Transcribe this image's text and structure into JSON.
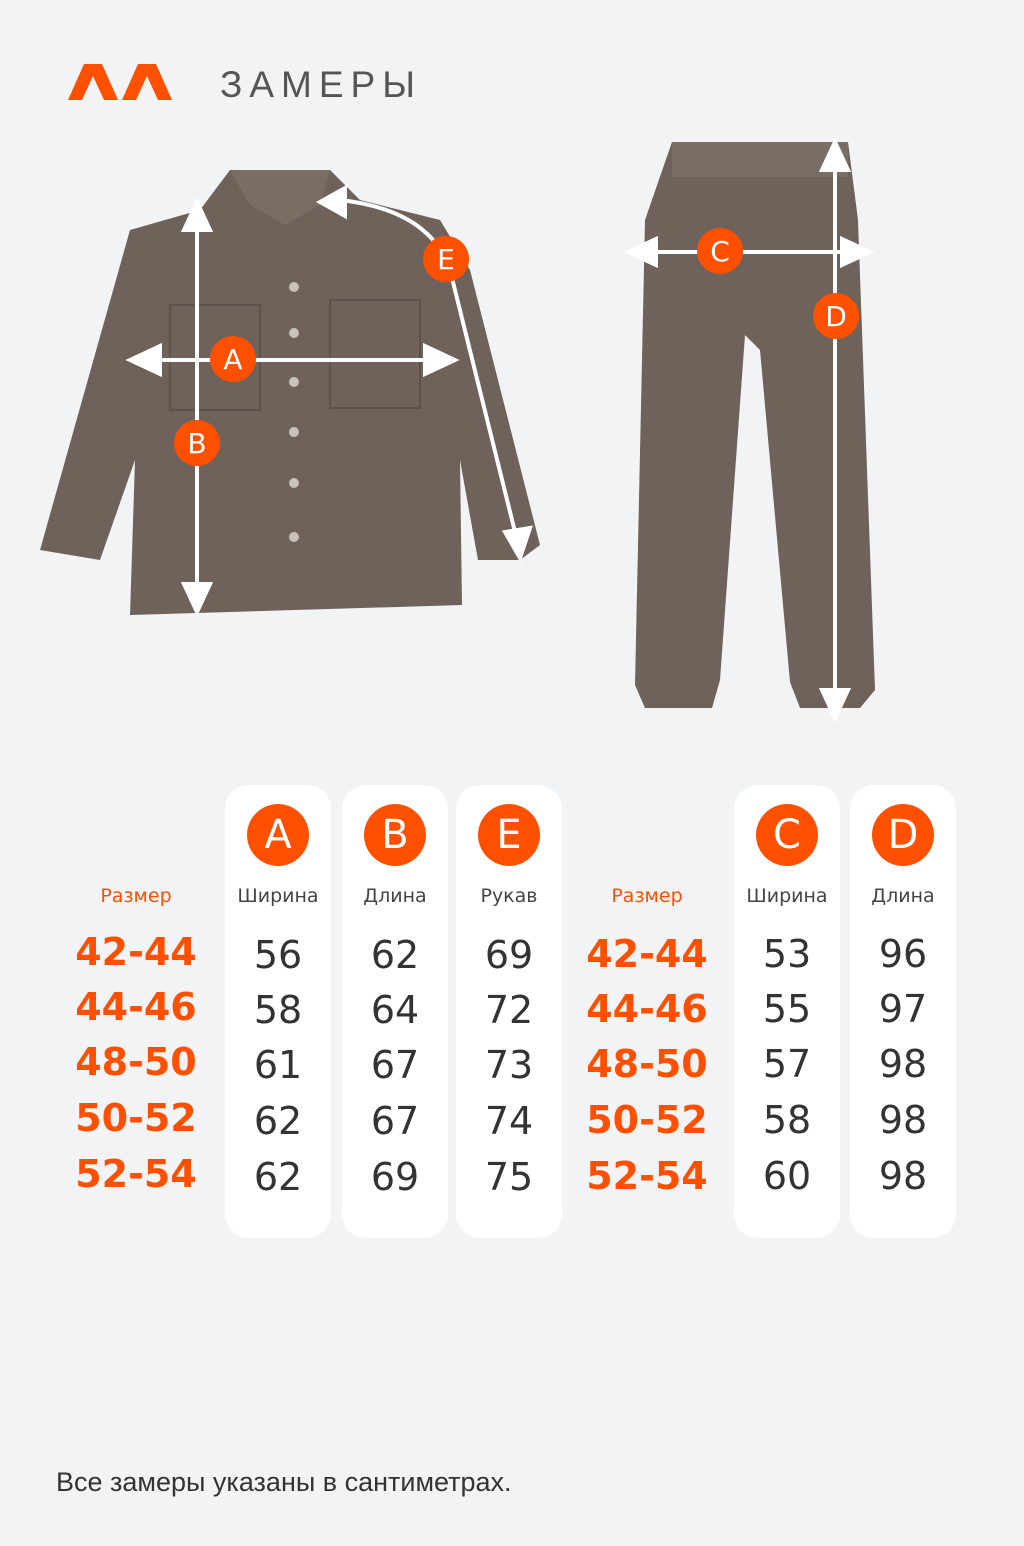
{
  "header": {
    "logo": "AA",
    "title": "ЗАМЕРЫ"
  },
  "colors": {
    "accent": "#fe5000",
    "background": "#f2f3f5",
    "garment": "#6e625a"
  },
  "diagram_labels": {
    "shirt": [
      "A",
      "B",
      "E"
    ],
    "pants": [
      "C",
      "D"
    ]
  },
  "shirt_table": {
    "size_header": "Размер",
    "sizes": [
      "42-44",
      "44-46",
      "48-50",
      "50-52",
      "52-54"
    ],
    "columns": [
      {
        "letter": "A",
        "label": "Ширина",
        "values": [
          "56",
          "58",
          "61",
          "62",
          "62"
        ]
      },
      {
        "letter": "B",
        "label": "Длина",
        "values": [
          "62",
          "64",
          "67",
          "67",
          "69"
        ]
      },
      {
        "letter": "E",
        "label": "Рукав",
        "values": [
          "69",
          "72",
          "73",
          "74",
          "75"
        ]
      }
    ]
  },
  "pants_table": {
    "size_header": "Размер",
    "sizes": [
      "42-44",
      "44-46",
      "48-50",
      "50-52",
      "52-54"
    ],
    "columns": [
      {
        "letter": "C",
        "label": "Ширина",
        "values": [
          "53",
          "55",
          "57",
          "58",
          "60"
        ]
      },
      {
        "letter": "D",
        "label": "Длина",
        "values": [
          "96",
          "97",
          "98",
          "98",
          "98"
        ]
      }
    ]
  },
  "footer": "Все замеры указаны в сантиметрах."
}
